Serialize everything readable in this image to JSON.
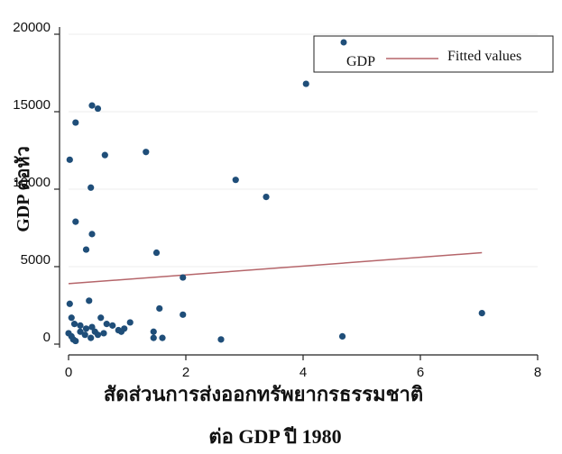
{
  "chart_data": {
    "type": "scatter",
    "title": "",
    "xlabel_line1": "สัดส่วนการส่งออกทรัพยากรธรรมชาติ",
    "xlabel_line2": "ต่อ GDP ปี 1980",
    "ylabel": "GDP ต่อหัว",
    "xlim": [
      0,
      8
    ],
    "ylim": [
      0,
      20000
    ],
    "x_ticks": [
      "0",
      "2",
      "4",
      "6",
      "8"
    ],
    "y_ticks": [
      "0",
      "5000",
      "10000",
      "15000",
      "20000"
    ],
    "y_tick_values": [
      0,
      5000,
      10000,
      15000,
      20000
    ],
    "x_tick_values": [
      0,
      2,
      4,
      6,
      8
    ],
    "grid": "horizontal",
    "legend_position": "top-right",
    "colors": {
      "points": "#1f4e79",
      "fit": "#b5656a",
      "grid": "#eeeeee"
    },
    "series": [
      {
        "name": "GDP",
        "kind": "scatter",
        "points": [
          [
            4.67,
            19000
          ],
          [
            4.05,
            16800
          ],
          [
            0.4,
            15400
          ],
          [
            0.5,
            15200
          ],
          [
            0.12,
            14300
          ],
          [
            0.02,
            11900
          ],
          [
            1.32,
            12400
          ],
          [
            0.62,
            12200
          ],
          [
            2.85,
            10600
          ],
          [
            3.37,
            9500
          ],
          [
            0.38,
            10100
          ],
          [
            0.12,
            7900
          ],
          [
            0.4,
            7100
          ],
          [
            0.3,
            6100
          ],
          [
            1.5,
            5900
          ],
          [
            1.95,
            4300
          ],
          [
            0.35,
            2800
          ],
          [
            0.02,
            2600
          ],
          [
            1.55,
            2300
          ],
          [
            1.95,
            1900
          ],
          [
            7.05,
            2000
          ],
          [
            0.05,
            1700
          ],
          [
            0.1,
            1300
          ],
          [
            0.2,
            1200
          ],
          [
            0.3,
            1000
          ],
          [
            0.4,
            1100
          ],
          [
            0.55,
            1700
          ],
          [
            0.65,
            1300
          ],
          [
            0.75,
            1200
          ],
          [
            0.85,
            900
          ],
          [
            0.9,
            800
          ],
          [
            0.95,
            1000
          ],
          [
            1.05,
            1400
          ],
          [
            0.0,
            700
          ],
          [
            0.05,
            500
          ],
          [
            0.08,
            300
          ],
          [
            0.12,
            200
          ],
          [
            0.2,
            800
          ],
          [
            0.28,
            600
          ],
          [
            0.38,
            400
          ],
          [
            0.45,
            800
          ],
          [
            0.5,
            600
          ],
          [
            0.6,
            700
          ],
          [
            1.45,
            800
          ],
          [
            1.45,
            400
          ],
          [
            1.6,
            400
          ],
          [
            2.6,
            300
          ],
          [
            4.67,
            500
          ]
        ]
      },
      {
        "name": "Fitted values",
        "kind": "line",
        "points": [
          [
            0,
            3900
          ],
          [
            7.05,
            5900
          ]
        ]
      }
    ]
  }
}
